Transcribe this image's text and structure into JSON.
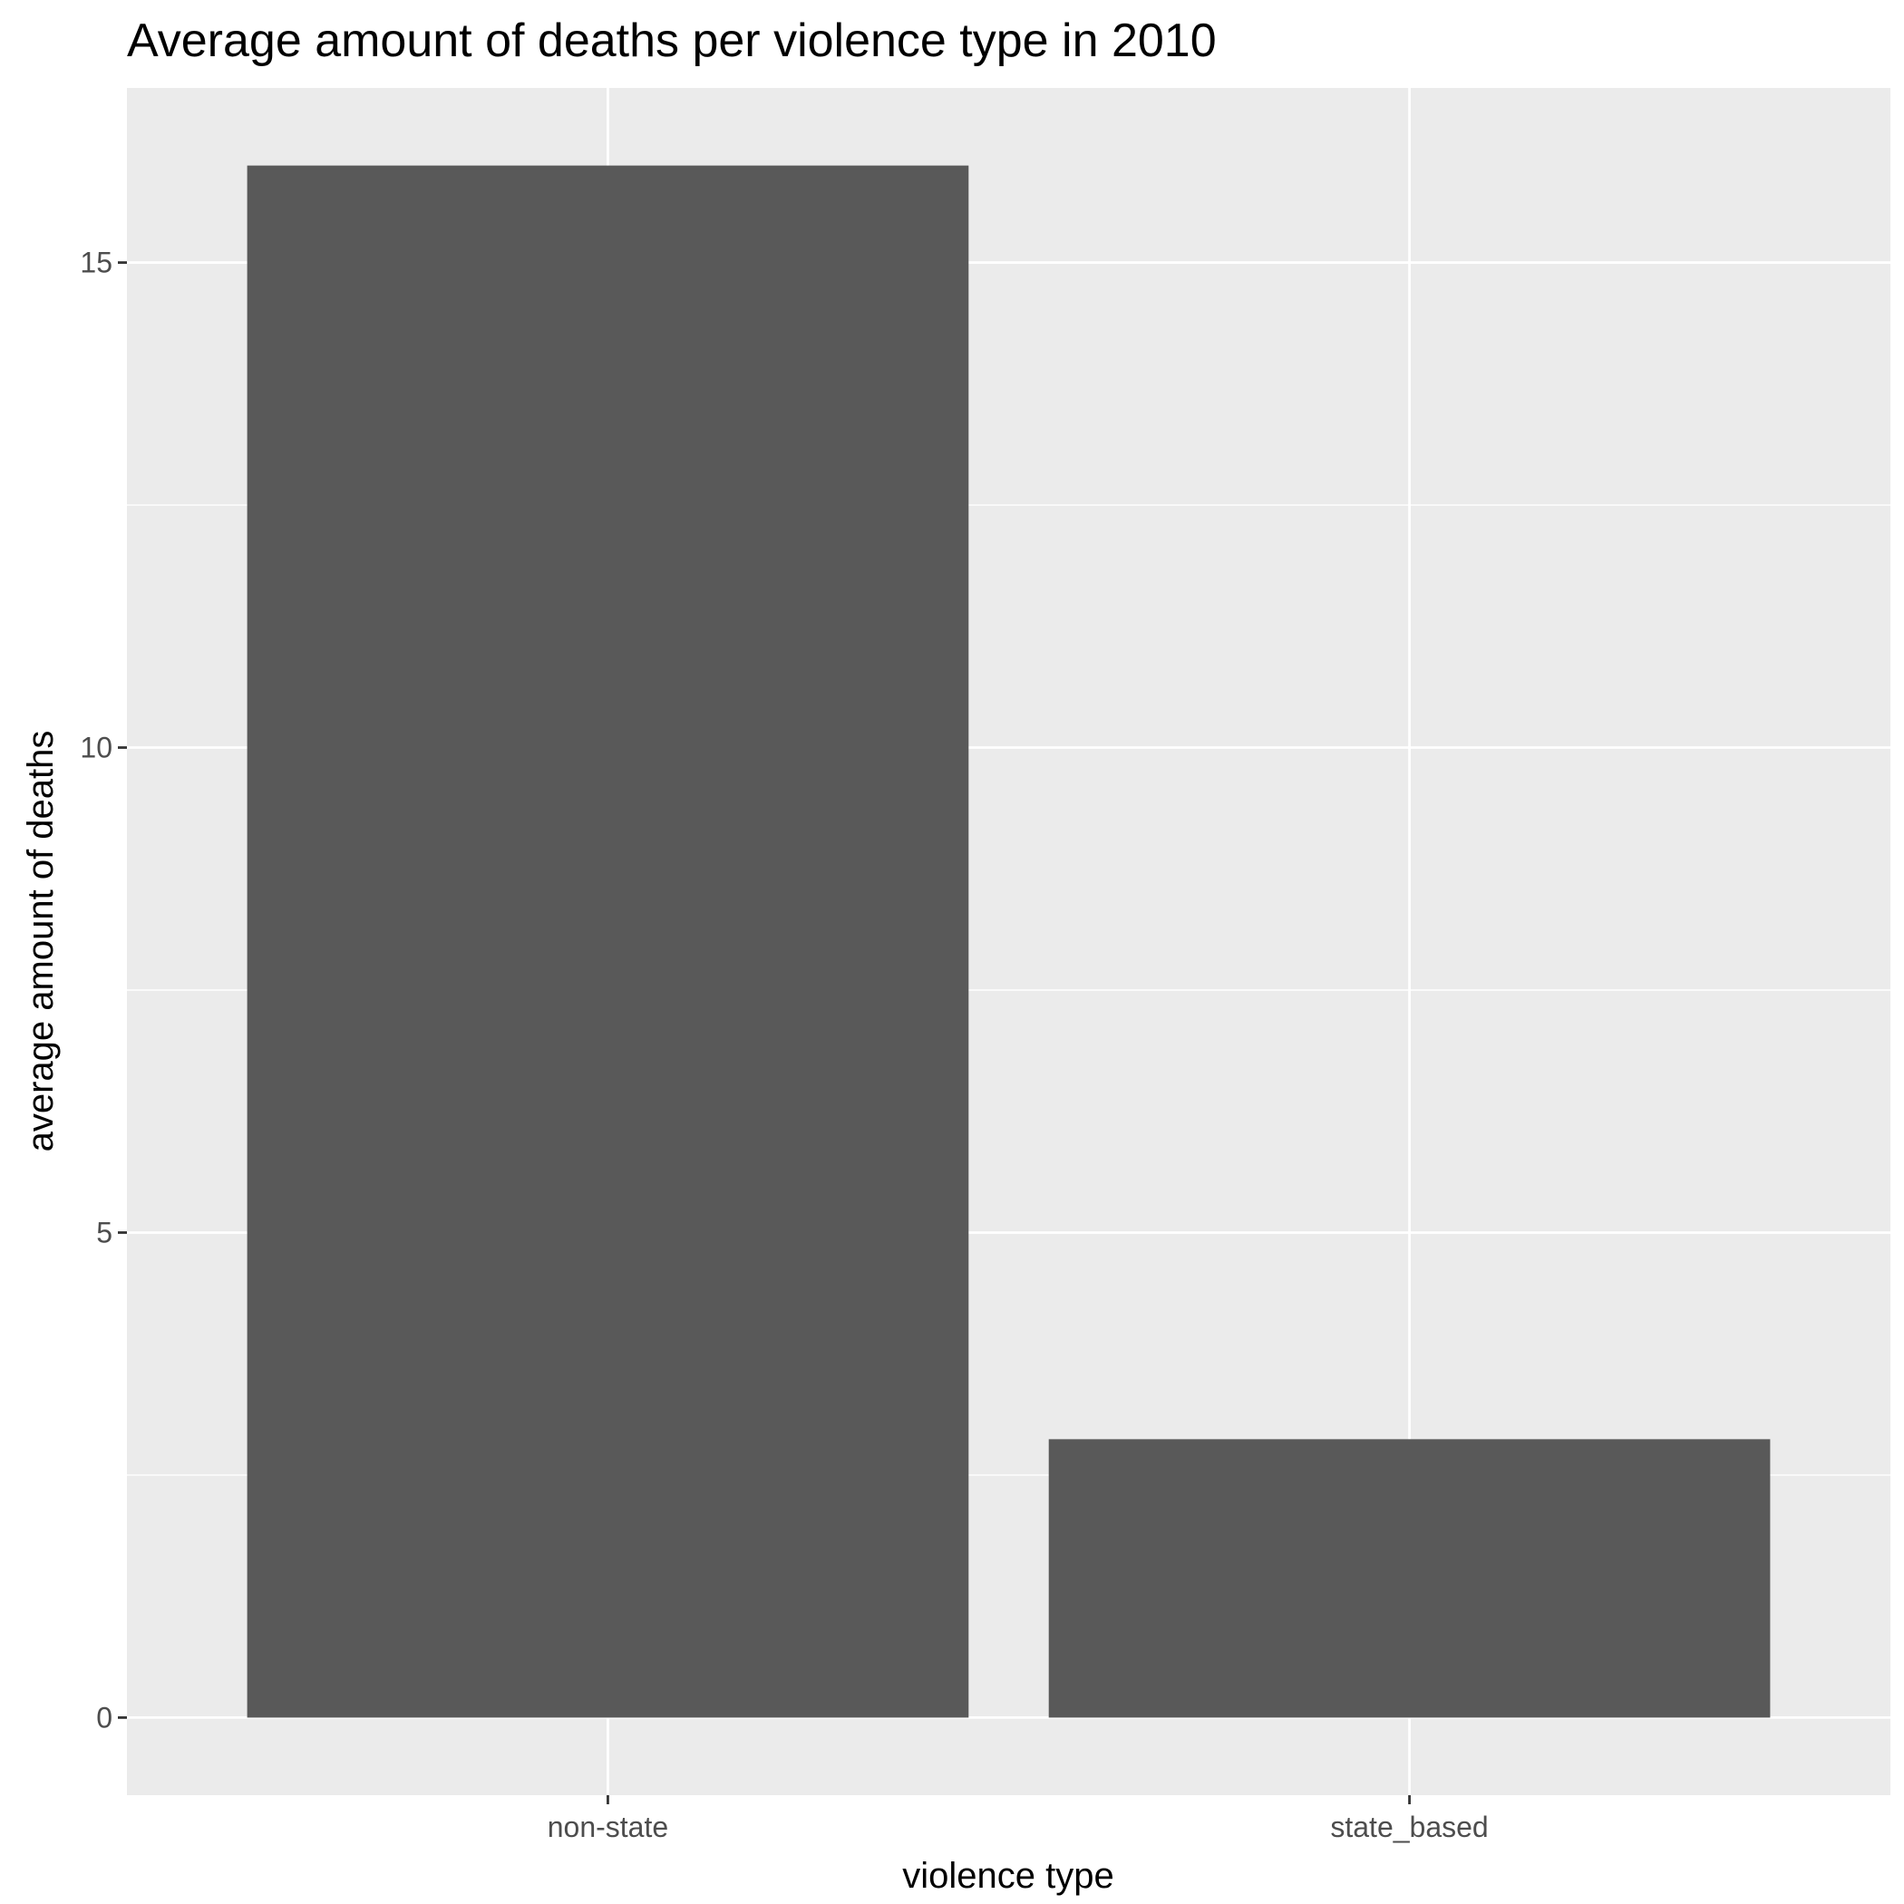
{
  "chart_data": {
    "type": "bar",
    "title": "Average amount of deaths per violence type in 2010",
    "xlabel": "violence type",
    "ylabel": "average amount of deaths",
    "categories": [
      "non-state",
      "state_based"
    ],
    "values": [
      16.0,
      2.87
    ],
    "ylim": [
      -0.8,
      16.8
    ],
    "yticks": [
      0,
      5,
      10,
      15
    ],
    "ytick_labels": [
      "0",
      "5",
      "10",
      "15"
    ],
    "grid": true,
    "legend": "none",
    "colors": {
      "bar": "#595959",
      "panel": "#ebebeb",
      "grid": "#ffffff",
      "tick": "#333333"
    }
  }
}
